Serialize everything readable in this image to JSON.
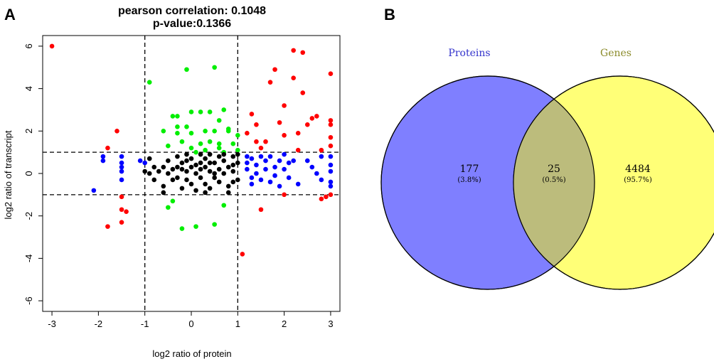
{
  "chart_data": [
    {
      "panel": "A",
      "type": "scatter",
      "title": "pearson correlation: 0.1048",
      "subtitle": "p-value:0.1366",
      "xlabel": "log2 ratio of protein",
      "ylabel": "log2 ratio of transcript",
      "xlim": [
        -3.2,
        3.2
      ],
      "ylim": [
        -6.5,
        6.5
      ],
      "xticks": [
        -3,
        -2,
        -1,
        0,
        1,
        2,
        3
      ],
      "yticks": [
        -6,
        -4,
        -2,
        0,
        2,
        4,
        6
      ],
      "reference_lines": {
        "x": [
          -1,
          1
        ],
        "y": [
          -1,
          1
        ]
      },
      "grid": false,
      "series": [
        {
          "color": "#ff0000",
          "points": [
            [
              -3.0,
              6.0
            ],
            [
              -1.6,
              2.0
            ],
            [
              -1.8,
              1.2
            ],
            [
              -1.5,
              -1.1
            ],
            [
              -1.5,
              -1.7
            ],
            [
              -1.4,
              -1.8
            ],
            [
              -1.5,
              -2.3
            ],
            [
              -1.8,
              -2.5
            ],
            [
              1.1,
              -3.8
            ],
            [
              1.3,
              2.8
            ],
            [
              1.2,
              1.9
            ],
            [
              1.4,
              1.5
            ],
            [
              1.5,
              1.2
            ],
            [
              1.6,
              1.5
            ],
            [
              1.7,
              4.3
            ],
            [
              1.8,
              4.9
            ],
            [
              1.9,
              2.4
            ],
            [
              2.0,
              3.2
            ],
            [
              2.0,
              1.8
            ],
            [
              2.2,
              4.5
            ],
            [
              2.4,
              3.8
            ],
            [
              2.3,
              1.9
            ],
            [
              2.3,
              1.1
            ],
            [
              2.5,
              2.3
            ],
            [
              2.6,
              2.6
            ],
            [
              2.7,
              2.7
            ],
            [
              2.8,
              1.1
            ],
            [
              2.4,
              5.7
            ],
            [
              2.9,
              -1.1
            ],
            [
              2.8,
              -1.2
            ],
            [
              3.0,
              4.7
            ],
            [
              3.0,
              2.5
            ],
            [
              3.0,
              2.3
            ],
            [
              3.0,
              1.7
            ],
            [
              3.0,
              1.3
            ],
            [
              3.0,
              -1.0
            ],
            [
              1.5,
              -1.7
            ],
            [
              2.0,
              -1.0
            ],
            [
              2.2,
              5.8
            ],
            [
              1.4,
              2.3
            ]
          ]
        },
        {
          "color": "#0000ff",
          "points": [
            [
              -2.1,
              -0.8
            ],
            [
              -1.9,
              0.8
            ],
            [
              -1.9,
              0.6
            ],
            [
              -1.5,
              0.8
            ],
            [
              -1.5,
              0.5
            ],
            [
              -1.5,
              0.3
            ],
            [
              -1.5,
              0.1
            ],
            [
              -1.5,
              -0.3
            ],
            [
              -1.1,
              0.6
            ],
            [
              -1.0,
              0.5
            ],
            [
              1.2,
              0.8
            ],
            [
              1.2,
              0.5
            ],
            [
              1.2,
              0.2
            ],
            [
              1.3,
              -0.2
            ],
            [
              1.3,
              0.7
            ],
            [
              1.3,
              -0.5
            ],
            [
              1.4,
              0.4
            ],
            [
              1.4,
              0.0
            ],
            [
              1.5,
              0.8
            ],
            [
              1.5,
              -0.3
            ],
            [
              1.6,
              0.6
            ],
            [
              1.6,
              0.2
            ],
            [
              1.7,
              -0.4
            ],
            [
              1.7,
              0.8
            ],
            [
              1.8,
              0.3
            ],
            [
              1.8,
              -0.1
            ],
            [
              1.9,
              0.6
            ],
            [
              1.9,
              -0.6
            ],
            [
              2.0,
              0.2
            ],
            [
              2.0,
              0.9
            ],
            [
              2.1,
              -0.2
            ],
            [
              2.1,
              0.5
            ],
            [
              2.2,
              0.6
            ],
            [
              2.3,
              -0.5
            ],
            [
              2.5,
              0.6
            ],
            [
              2.6,
              0.3
            ],
            [
              2.7,
              0.0
            ],
            [
              2.8,
              0.8
            ],
            [
              2.8,
              -0.3
            ],
            [
              3.0,
              0.8
            ],
            [
              3.0,
              0.4
            ],
            [
              3.0,
              0.1
            ],
            [
              3.0,
              -0.4
            ],
            [
              3.0,
              -0.6
            ]
          ]
        },
        {
          "color": "#00ee00",
          "points": [
            [
              -0.9,
              4.3
            ],
            [
              -0.6,
              2.0
            ],
            [
              -0.5,
              1.3
            ],
            [
              -0.5,
              -1.6
            ],
            [
              -0.4,
              2.7
            ],
            [
              -0.4,
              -1.3
            ],
            [
              -0.3,
              2.7
            ],
            [
              -0.3,
              2.2
            ],
            [
              -0.3,
              1.9
            ],
            [
              -0.2,
              1.5
            ],
            [
              -0.2,
              -2.6
            ],
            [
              -0.1,
              4.9
            ],
            [
              -0.1,
              2.2
            ],
            [
              0.0,
              1.9
            ],
            [
              0.0,
              1.2
            ],
            [
              0.1,
              1.0
            ],
            [
              0.1,
              -2.5
            ],
            [
              0.2,
              2.9
            ],
            [
              0.2,
              1.4
            ],
            [
              0.3,
              2.0
            ],
            [
              0.3,
              1.1
            ],
            [
              0.4,
              2.9
            ],
            [
              0.4,
              1.5
            ],
            [
              0.5,
              5.0
            ],
            [
              0.5,
              2.0
            ],
            [
              0.5,
              -2.4
            ],
            [
              0.6,
              2.5
            ],
            [
              0.6,
              1.4
            ],
            [
              0.7,
              3.0
            ],
            [
              0.7,
              1.0
            ],
            [
              0.7,
              -1.5
            ],
            [
              0.8,
              2.1
            ],
            [
              0.9,
              1.4
            ],
            [
              1.0,
              1.8
            ],
            [
              1.0,
              1.1
            ],
            [
              0.0,
              2.9
            ],
            [
              0.6,
              1.2
            ],
            [
              0.8,
              2.0
            ]
          ]
        },
        {
          "color": "#000000",
          "points": [
            [
              -1.0,
              0.1
            ],
            [
              -0.9,
              0.7
            ],
            [
              -0.9,
              0.0
            ],
            [
              -0.8,
              0.3
            ],
            [
              -0.8,
              -0.3
            ],
            [
              -0.7,
              0.1
            ],
            [
              -0.6,
              0.3
            ],
            [
              -0.6,
              -0.6
            ],
            [
              -0.5,
              0.6
            ],
            [
              -0.5,
              0.0
            ],
            [
              -0.4,
              0.2
            ],
            [
              -0.4,
              -0.3
            ],
            [
              -0.3,
              0.8
            ],
            [
              -0.3,
              0.3
            ],
            [
              -0.3,
              -0.2
            ],
            [
              -0.2,
              0.5
            ],
            [
              -0.2,
              -0.7
            ],
            [
              -0.1,
              0.1
            ],
            [
              -0.1,
              0.9
            ],
            [
              -0.1,
              -0.3
            ],
            [
              0.0,
              0.7
            ],
            [
              0.0,
              0.3
            ],
            [
              0.0,
              -0.5
            ],
            [
              0.1,
              0.0
            ],
            [
              0.1,
              -0.8
            ],
            [
              0.2,
              0.5
            ],
            [
              0.2,
              0.9
            ],
            [
              0.2,
              -0.2
            ],
            [
              0.3,
              0.3
            ],
            [
              0.3,
              0.7
            ],
            [
              0.3,
              -0.5
            ],
            [
              0.4,
              0.1
            ],
            [
              0.4,
              0.9
            ],
            [
              0.4,
              -0.7
            ],
            [
              0.5,
              0.5
            ],
            [
              0.5,
              -0.2
            ],
            [
              0.6,
              0.8
            ],
            [
              0.6,
              0.2
            ],
            [
              0.6,
              -0.4
            ],
            [
              0.7,
              0.6
            ],
            [
              0.7,
              0.0
            ],
            [
              0.8,
              0.3
            ],
            [
              0.8,
              -0.6
            ],
            [
              0.8,
              -0.9
            ],
            [
              0.9,
              0.8
            ],
            [
              0.9,
              0.1
            ],
            [
              1.0,
              0.5
            ],
            [
              1.0,
              -0.3
            ],
            [
              1.0,
              0.9
            ],
            [
              -0.6,
              -0.9
            ],
            [
              0.1,
              0.4
            ],
            [
              0.5,
              0.0
            ],
            [
              0.9,
              0.4
            ],
            [
              -0.2,
              0.2
            ],
            [
              0.3,
              -0.9
            ],
            [
              0.7,
              0.9
            ],
            [
              0.4,
              0.5
            ],
            [
              0.2,
              0.2
            ],
            [
              -0.1,
              0.6
            ],
            [
              0.9,
              -0.4
            ]
          ]
        }
      ]
    },
    {
      "panel": "B",
      "type": "venn",
      "sets": [
        {
          "label": "Proteins",
          "color": "#7f7fff",
          "label_color": "#3333cc"
        },
        {
          "label": "Genes",
          "color": "#ffff77",
          "label_color": "#8b8b2a"
        }
      ],
      "intersection_color": "#bcbc7c",
      "regions": [
        {
          "count": "177",
          "percent": "(3.8%)"
        },
        {
          "count": "25",
          "percent": "(0.5%)"
        },
        {
          "count": "4484",
          "percent": "(95.7%)"
        }
      ]
    }
  ]
}
